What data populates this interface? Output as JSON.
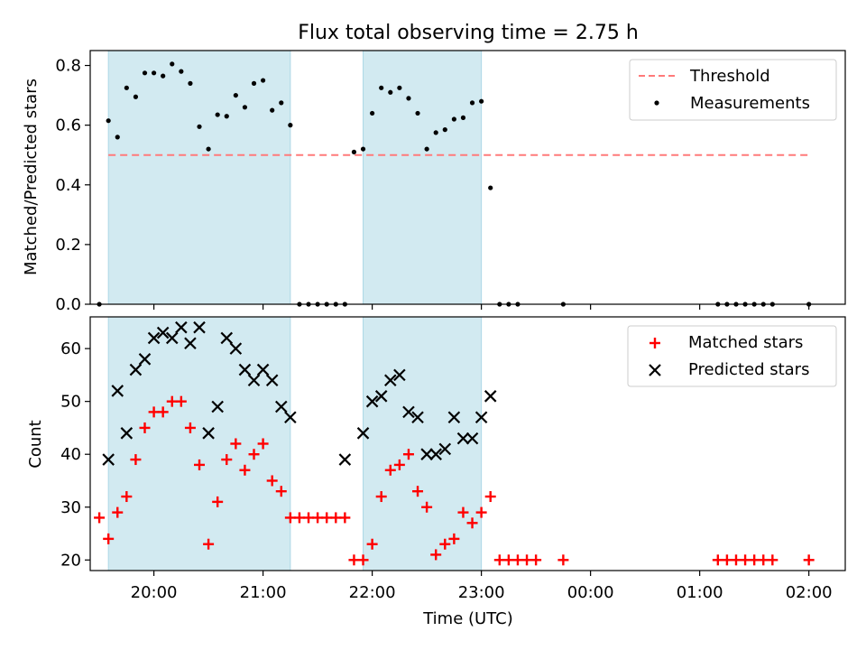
{
  "chart_data": [
    {
      "type": "scatter",
      "title": "Flux total observing time = 2.75 h",
      "ylabel": "Matched/Predicted stars",
      "xlim": [
        "19:25",
        "02:20"
      ],
      "ylim": [
        0,
        0.85
      ],
      "yticks": [
        "0.0",
        "0.2",
        "0.4",
        "0.6",
        "0.8"
      ],
      "shaded_intervals": [
        [
          "19:35",
          "21:15"
        ],
        [
          "21:55",
          "23:00"
        ]
      ],
      "threshold": {
        "name": "Threshold",
        "y": 0.5,
        "x_range": [
          "19:35",
          "02:00"
        ],
        "color": "#ff7a7a"
      },
      "legend": {
        "position": "top-right",
        "entries": [
          "Threshold",
          "Measurements"
        ]
      },
      "series": [
        {
          "name": "Measurements",
          "color": "#000000",
          "points": [
            [
              "19:30",
              0.0
            ],
            [
              "19:35",
              0.615
            ],
            [
              "19:40",
              0.56
            ],
            [
              "19:45",
              0.725
            ],
            [
              "19:50",
              0.695
            ],
            [
              "19:55",
              0.775
            ],
            [
              "20:00",
              0.775
            ],
            [
              "20:05",
              0.765
            ],
            [
              "20:10",
              0.805
            ],
            [
              "20:15",
              0.78
            ],
            [
              "20:20",
              0.74
            ],
            [
              "20:25",
              0.595
            ],
            [
              "20:30",
              0.52
            ],
            [
              "20:35",
              0.635
            ],
            [
              "20:40",
              0.63
            ],
            [
              "20:45",
              0.7
            ],
            [
              "20:50",
              0.66
            ],
            [
              "20:55",
              0.74
            ],
            [
              "21:00",
              0.75
            ],
            [
              "21:05",
              0.65
            ],
            [
              "21:10",
              0.675
            ],
            [
              "21:15",
              0.6
            ],
            [
              "21:20",
              0.0
            ],
            [
              "21:25",
              0.0
            ],
            [
              "21:30",
              0.0
            ],
            [
              "21:35",
              0.0
            ],
            [
              "21:40",
              0.0
            ],
            [
              "21:45",
              0.0
            ],
            [
              "21:50",
              0.51
            ],
            [
              "21:55",
              0.52
            ],
            [
              "22:00",
              0.64
            ],
            [
              "22:05",
              0.725
            ],
            [
              "22:10",
              0.71
            ],
            [
              "22:15",
              0.725
            ],
            [
              "22:20",
              0.69
            ],
            [
              "22:25",
              0.64
            ],
            [
              "22:30",
              0.52
            ],
            [
              "22:35",
              0.575
            ],
            [
              "22:40",
              0.585
            ],
            [
              "22:45",
              0.62
            ],
            [
              "22:50",
              0.625
            ],
            [
              "22:55",
              0.675
            ],
            [
              "23:00",
              0.68
            ],
            [
              "23:05",
              0.39
            ],
            [
              "23:10",
              0.0
            ],
            [
              "23:15",
              0.0
            ],
            [
              "23:20",
              0.0
            ],
            [
              "23:45",
              0.0
            ],
            [
              "01:10",
              0.0
            ],
            [
              "01:15",
              0.0
            ],
            [
              "01:20",
              0.0
            ],
            [
              "01:25",
              0.0
            ],
            [
              "01:30",
              0.0
            ],
            [
              "01:35",
              0.0
            ],
            [
              "01:40",
              0.0
            ],
            [
              "02:00",
              0.0
            ]
          ]
        }
      ]
    },
    {
      "type": "scatter",
      "xlabel": "Time (UTC)",
      "ylabel": "Count",
      "xlim": [
        "19:25",
        "02:20"
      ],
      "ylim": [
        18,
        66
      ],
      "xticks": [
        "20:00",
        "21:00",
        "22:00",
        "23:00",
        "00:00",
        "01:00",
        "02:00"
      ],
      "yticks": [
        "20",
        "30",
        "40",
        "50",
        "60"
      ],
      "shaded_intervals": [
        [
          "19:35",
          "21:15"
        ],
        [
          "21:55",
          "23:00"
        ]
      ],
      "legend": {
        "position": "top-right",
        "entries": [
          "Matched stars",
          "Predicted stars"
        ]
      },
      "series": [
        {
          "name": "Matched stars",
          "marker": "plus",
          "color": "#ff0000",
          "points": [
            [
              "19:30",
              28
            ],
            [
              "19:35",
              24
            ],
            [
              "19:40",
              29
            ],
            [
              "19:45",
              32
            ],
            [
              "19:50",
              39
            ],
            [
              "19:55",
              45
            ],
            [
              "20:00",
              48
            ],
            [
              "20:05",
              48
            ],
            [
              "20:10",
              50
            ],
            [
              "20:15",
              50
            ],
            [
              "20:20",
              45
            ],
            [
              "20:25",
              38
            ],
            [
              "20:30",
              23
            ],
            [
              "20:35",
              31
            ],
            [
              "20:40",
              39
            ],
            [
              "20:45",
              42
            ],
            [
              "20:50",
              37
            ],
            [
              "20:55",
              40
            ],
            [
              "21:00",
              42
            ],
            [
              "21:05",
              35
            ],
            [
              "21:10",
              33
            ],
            [
              "21:15",
              28
            ],
            [
              "21:20",
              28
            ],
            [
              "21:25",
              28
            ],
            [
              "21:30",
              28
            ],
            [
              "21:35",
              28
            ],
            [
              "21:40",
              28
            ],
            [
              "21:45",
              28
            ],
            [
              "21:50",
              20
            ],
            [
              "21:55",
              20
            ],
            [
              "22:00",
              23
            ],
            [
              "22:05",
              32
            ],
            [
              "22:10",
              37
            ],
            [
              "22:15",
              38
            ],
            [
              "22:20",
              40
            ],
            [
              "22:25",
              33
            ],
            [
              "22:30",
              30
            ],
            [
              "22:35",
              21
            ],
            [
              "22:40",
              23
            ],
            [
              "22:45",
              24
            ],
            [
              "22:50",
              29
            ],
            [
              "22:55",
              27
            ],
            [
              "23:00",
              29
            ],
            [
              "23:05",
              32
            ],
            [
              "23:10",
              20
            ],
            [
              "23:15",
              20
            ],
            [
              "23:20",
              20
            ],
            [
              "23:25",
              20
            ],
            [
              "23:30",
              20
            ],
            [
              "23:45",
              20
            ],
            [
              "01:10",
              20
            ],
            [
              "01:15",
              20
            ],
            [
              "01:20",
              20
            ],
            [
              "01:25",
              20
            ],
            [
              "01:30",
              20
            ],
            [
              "01:35",
              20
            ],
            [
              "01:40",
              20
            ],
            [
              "02:00",
              20
            ]
          ]
        },
        {
          "name": "Predicted stars",
          "marker": "x",
          "color": "#000000",
          "points": [
            [
              "19:35",
              39
            ],
            [
              "19:40",
              52
            ],
            [
              "19:45",
              44
            ],
            [
              "19:50",
              56
            ],
            [
              "19:55",
              58
            ],
            [
              "20:00",
              62
            ],
            [
              "20:05",
              63
            ],
            [
              "20:10",
              62
            ],
            [
              "20:15",
              64
            ],
            [
              "20:20",
              61
            ],
            [
              "20:25",
              64
            ],
            [
              "20:30",
              44
            ],
            [
              "20:35",
              49
            ],
            [
              "20:40",
              62
            ],
            [
              "20:45",
              60
            ],
            [
              "20:50",
              56
            ],
            [
              "20:55",
              54
            ],
            [
              "21:00",
              56
            ],
            [
              "21:05",
              54
            ],
            [
              "21:10",
              49
            ],
            [
              "21:15",
              47
            ],
            [
              "21:45",
              39
            ],
            [
              "21:55",
              44
            ],
            [
              "22:00",
              50
            ],
            [
              "22:05",
              51
            ],
            [
              "22:10",
              54
            ],
            [
              "22:15",
              55
            ],
            [
              "22:20",
              48
            ],
            [
              "22:25",
              47
            ],
            [
              "22:30",
              40
            ],
            [
              "22:35",
              40
            ],
            [
              "22:40",
              41
            ],
            [
              "22:45",
              47
            ],
            [
              "22:50",
              43
            ],
            [
              "22:55",
              43
            ],
            [
              "23:00",
              47
            ],
            [
              "23:05",
              51
            ]
          ]
        }
      ]
    }
  ],
  "colors": {
    "shade": "#add8e6",
    "threshold": "#ff7a7a",
    "matched": "#ff0000",
    "predicted": "#000000",
    "measurements": "#000000"
  }
}
